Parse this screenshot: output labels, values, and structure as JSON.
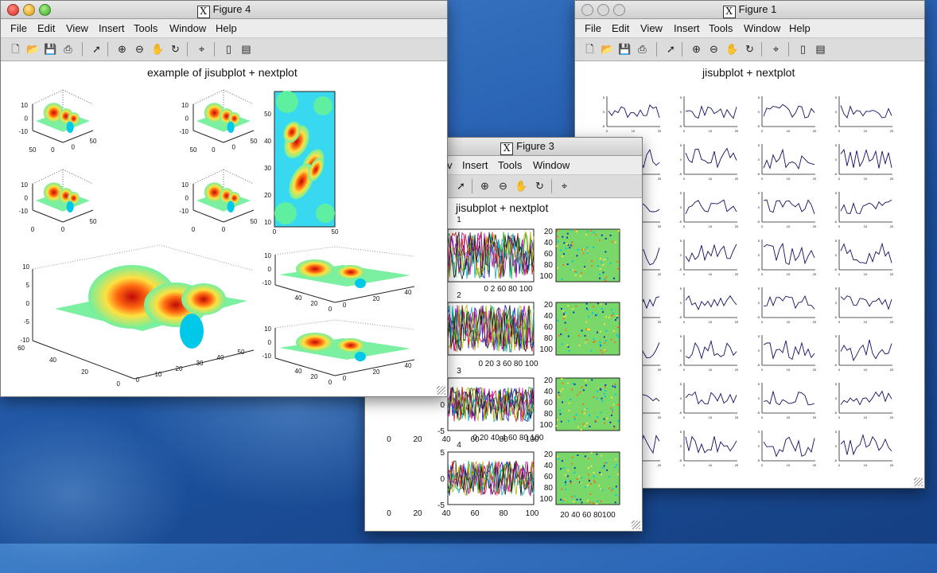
{
  "menus": [
    "File",
    "Edit",
    "View",
    "Insert",
    "Tools",
    "Window",
    "Help"
  ],
  "toolbar_icons": [
    "new-file-icon",
    "open-folder-icon",
    "save-icon",
    "print-icon",
    "pointer-icon",
    "zoom-in-icon",
    "zoom-out-icon",
    "pan-hand-icon",
    "rotate-icon",
    "data-cursor-icon",
    "colorbar-icon",
    "legend-icon"
  ],
  "colors": {
    "plot_line": "#101060",
    "jet_high": "#cc1010",
    "jet_low": "#00c8e8"
  },
  "figure4": {
    "window_title": "Figure 4",
    "plot_title": "example of  jisubplot + nextplot",
    "small_surfaces": [
      {
        "z_ticks": [
          "10",
          "0",
          "-10"
        ],
        "x_ticks": [
          "50",
          "0",
          "0",
          "50"
        ]
      },
      {
        "z_ticks": [
          "10",
          "0",
          "-10"
        ],
        "x_ticks": [
          "50",
          "0",
          "0",
          "50"
        ]
      },
      {
        "z_ticks": [
          "10",
          "0",
          "-10"
        ],
        "x_ticks": [
          "0",
          "0",
          "50"
        ]
      },
      {
        "z_ticks": [
          "10",
          "0",
          "-10"
        ],
        "x_ticks": [
          "0",
          "0",
          "50"
        ]
      }
    ],
    "image_panel": {
      "y_ticks": [
        "10",
        "20",
        "30",
        "40",
        "50"
      ],
      "x_ticks": [
        "0",
        "50"
      ]
    },
    "big_surface": {
      "z_ticks": [
        "10",
        "5",
        "0",
        "-5",
        "-10"
      ],
      "y_ticks": [
        "60",
        "40",
        "20",
        "0"
      ],
      "x_ticks": [
        "0",
        "10",
        "20",
        "30",
        "40",
        "50"
      ]
    },
    "right_surfaces": [
      {
        "z_ticks": [
          "10",
          "0",
          "-10"
        ],
        "y_ticks": [
          "0",
          "20",
          "40"
        ],
        "x_ticks": [
          "0",
          "20",
          "40"
        ]
      },
      {
        "z_ticks": [
          "10",
          "0",
          "-10"
        ],
        "y_ticks": [
          "0",
          "20",
          "40"
        ],
        "x_ticks": [
          "0",
          "20",
          "40"
        ]
      }
    ]
  },
  "figure3": {
    "window_title": "Figure 3",
    "menus_visible": [
      "v",
      "Insert",
      "Tools",
      "Window"
    ],
    "plot_title": "jisubplot + nextplot",
    "panel_numbers": [
      "1",
      "2",
      "3",
      "4"
    ],
    "line_x_ticks": [
      "0",
      "20",
      "40",
      "60",
      "80",
      "100"
    ],
    "line_y_ticks": [
      "5",
      "0",
      "-5"
    ],
    "image_y_ticks": [
      "20",
      "40",
      "60",
      "80",
      "100"
    ],
    "image_x_ticks": "20 40 60 80100",
    "row1_x_visible": "0     2     60     80     100",
    "row2_x_visible": "0    20    3     60     80     100",
    "row3_x_visible": "0    20   40   4    60     80     100"
  },
  "figure1": {
    "window_title": "Figure 1",
    "plot_title": "jisubplot + nextplot",
    "grid_rows": 8,
    "grid_cols": 4,
    "tiny_y_ticks": [
      "5",
      "0",
      "-5"
    ],
    "tiny_x_ticks": [
      "0",
      "10",
      "20"
    ]
  }
}
